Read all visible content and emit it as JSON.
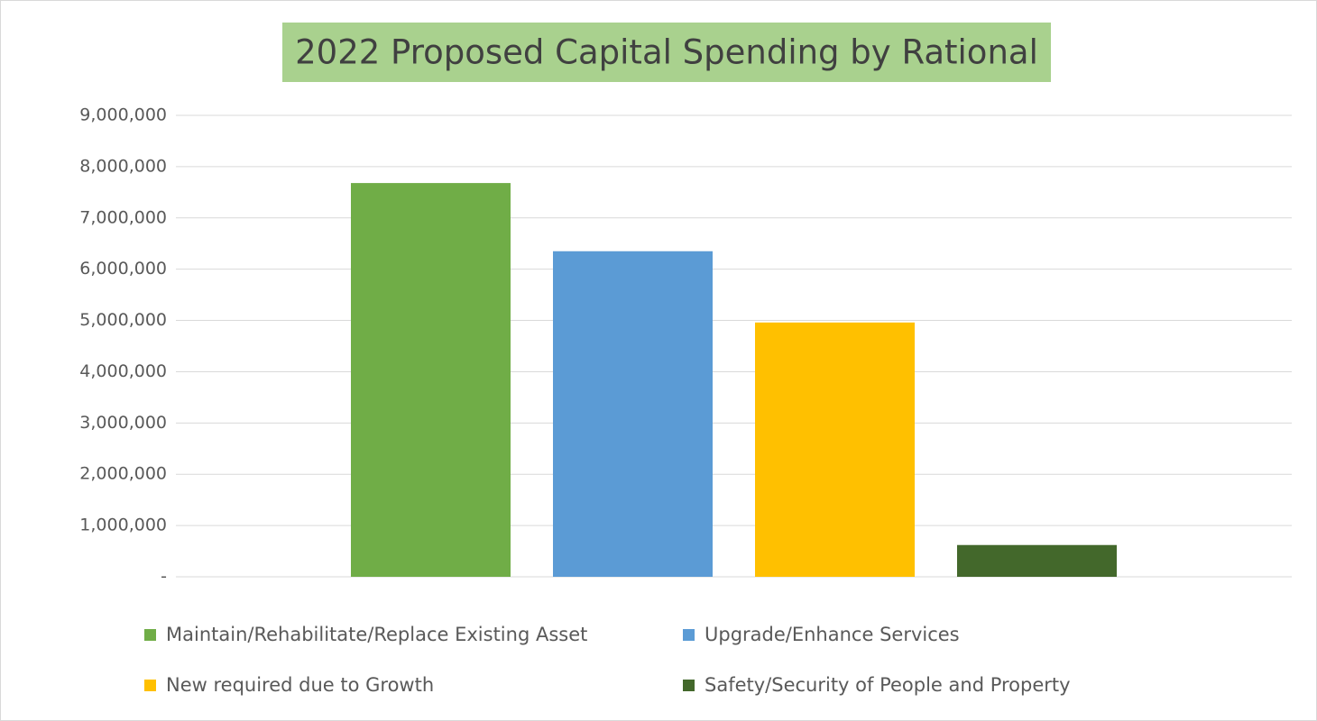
{
  "chart_data": {
    "type": "bar",
    "title": "2022 Proposed Capital Spending by Rational",
    "categories": [
      null
    ],
    "series": [
      {
        "name": "Maintain/Rehabilitate/Replace Existing Asset",
        "color": "#70ad47",
        "values": [
          7680000
        ]
      },
      {
        "name": "Upgrade/Enhance Services",
        "color": "#5b9bd5",
        "values": [
          6350000
        ]
      },
      {
        "name": "New required due to Growth",
        "color": "#ffc000",
        "values": [
          4960000
        ]
      },
      {
        "name": "Safety/Security of People and Property",
        "color": "#43682b",
        "values": [
          620000
        ]
      }
    ],
    "ylim": [
      0,
      9000000
    ],
    "yticks": [
      {
        "value": 0,
        "label": "-"
      },
      {
        "value": 1000000,
        "label": "1,000,000"
      },
      {
        "value": 2000000,
        "label": "2,000,000"
      },
      {
        "value": 3000000,
        "label": "3,000,000"
      },
      {
        "value": 4000000,
        "label": "4,000,000"
      },
      {
        "value": 5000000,
        "label": "5,000,000"
      },
      {
        "value": 6000000,
        "label": "6,000,000"
      },
      {
        "value": 7000000,
        "label": "7,000,000"
      },
      {
        "value": 8000000,
        "label": "8,000,000"
      },
      {
        "value": 9000000,
        "label": "9,000,000"
      }
    ],
    "grid": true,
    "legend": "bottom"
  }
}
